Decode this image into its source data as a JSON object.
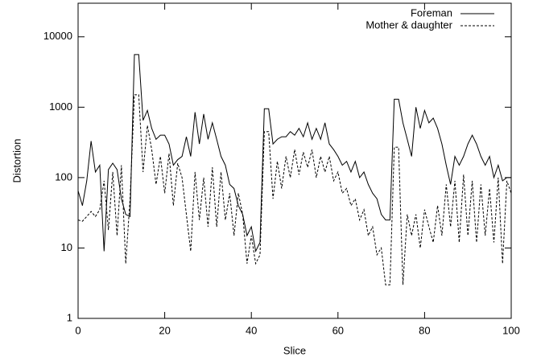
{
  "chart_data": {
    "type": "line",
    "x_label": "Slice",
    "y_label": "Distortion",
    "x": [
      0,
      1,
      2,
      3,
      4,
      5,
      6,
      7,
      8,
      9,
      10,
      11,
      12,
      13,
      14,
      15,
      16,
      17,
      18,
      19,
      20,
      21,
      22,
      23,
      24,
      25,
      26,
      27,
      28,
      29,
      30,
      31,
      32,
      33,
      34,
      35,
      36,
      37,
      38,
      39,
      40,
      41,
      42,
      43,
      44,
      45,
      46,
      47,
      48,
      49,
      50,
      51,
      52,
      53,
      54,
      55,
      56,
      57,
      58,
      59,
      60,
      61,
      62,
      63,
      64,
      65,
      66,
      67,
      68,
      69,
      70,
      71,
      72,
      73,
      74,
      75,
      76,
      77,
      78,
      79,
      80,
      81,
      82,
      83,
      84,
      85,
      86,
      87,
      88,
      89,
      90,
      91,
      92,
      93,
      94,
      95,
      96,
      97,
      98,
      99,
      100
    ],
    "series": [
      {
        "name": "Foreman",
        "color": "#000000",
        "line_style": "solid",
        "values": [
          65,
          40,
          90,
          330,
          120,
          150,
          9,
          130,
          160,
          130,
          50,
          30,
          28,
          5600,
          5600,
          650,
          900,
          500,
          350,
          400,
          400,
          300,
          150,
          180,
          200,
          380,
          200,
          850,
          300,
          800,
          350,
          600,
          350,
          200,
          150,
          80,
          70,
          40,
          30,
          15,
          20,
          9,
          12,
          950,
          950,
          300,
          350,
          380,
          380,
          450,
          400,
          500,
          380,
          600,
          350,
          500,
          350,
          600,
          300,
          250,
          200,
          150,
          170,
          120,
          170,
          100,
          120,
          80,
          60,
          50,
          30,
          25,
          25,
          1300,
          1300,
          600,
          350,
          200,
          1000,
          500,
          900,
          600,
          700,
          500,
          300,
          150,
          80,
          200,
          150,
          200,
          300,
          400,
          300,
          200,
          150,
          200,
          100,
          150,
          90,
          100,
          100
        ]
      },
      {
        "name": "Mother & daughter",
        "color": "#000000",
        "line_style": "dashed",
        "values": [
          25,
          24,
          28,
          33,
          28,
          35,
          90,
          18,
          120,
          15,
          150,
          6,
          50,
          1500,
          1500,
          120,
          550,
          250,
          80,
          200,
          60,
          220,
          40,
          160,
          100,
          30,
          9,
          120,
          25,
          100,
          20,
          140,
          20,
          120,
          25,
          60,
          15,
          60,
          30,
          6,
          15,
          6,
          8,
          450,
          450,
          50,
          170,
          70,
          200,
          100,
          250,
          110,
          230,
          140,
          250,
          100,
          200,
          120,
          200,
          90,
          120,
          60,
          70,
          40,
          50,
          25,
          35,
          15,
          20,
          8,
          10,
          3,
          3,
          270,
          270,
          3,
          30,
          15,
          30,
          10,
          35,
          20,
          12,
          40,
          15,
          80,
          20,
          90,
          12,
          110,
          15,
          90,
          12,
          80,
          15,
          70,
          12,
          100,
          6,
          90,
          60
        ]
      }
    ],
    "xlim": [
      0,
      100
    ],
    "xticks": [
      0,
      20,
      40,
      60,
      80,
      100
    ],
    "ylim": [
      1,
      30000
    ],
    "yticks": [
      1,
      10,
      100,
      1000,
      10000
    ],
    "y_log": true,
    "grid": false,
    "legend": "top-right"
  }
}
